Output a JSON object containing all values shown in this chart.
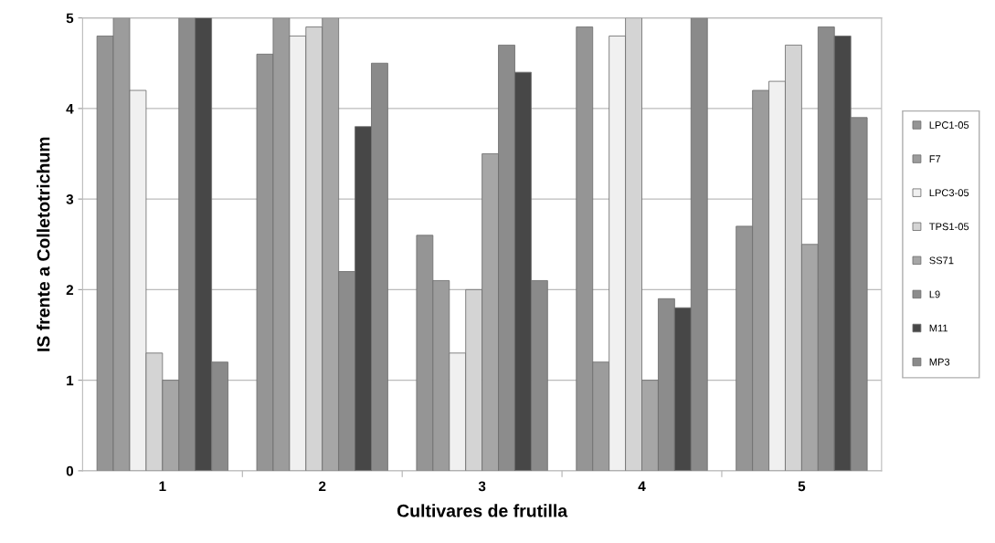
{
  "chart_data": {
    "type": "bar",
    "xlabel": "Cultivares de frutilla",
    "ylabel": "IS frente a Colletotrichum",
    "categories": [
      "1",
      "2",
      "3",
      "4",
      "5"
    ],
    "series": [
      {
        "name": "LPC1-05",
        "color": "#959595",
        "values": [
          4.8,
          4.6,
          2.6,
          4.9,
          2.7
        ]
      },
      {
        "name": "F7",
        "color": "#9c9c9c",
        "values": [
          5,
          5,
          2.1,
          1.2,
          4.2
        ]
      },
      {
        "name": "LPC3-05",
        "color": "#f0f0f0",
        "values": [
          4.2,
          4.8,
          1.3,
          4.8,
          4.3
        ]
      },
      {
        "name": "TPS1-05",
        "color": "#d4d4d4",
        "values": [
          1.3,
          4.9,
          2.0,
          5,
          4.7
        ]
      },
      {
        "name": "SS71",
        "color": "#a6a6a6",
        "values": [
          1.0,
          5,
          3.5,
          1.0,
          2.5
        ]
      },
      {
        "name": "L9",
        "color": "#8c8c8c",
        "values": [
          5,
          2.2,
          4.7,
          1.9,
          4.9
        ]
      },
      {
        "name": "M11",
        "color": "#474747",
        "values": [
          5,
          3.8,
          4.4,
          1.8,
          4.8
        ]
      },
      {
        "name": "MP3",
        "color": "#8a8a8a",
        "values": [
          1.2,
          4.5,
          2.1,
          5,
          3.9
        ]
      }
    ],
    "ylim": [
      0,
      5
    ],
    "yticks": [
      0,
      1,
      2,
      3,
      4,
      5
    ],
    "grid": "y",
    "legend": "right"
  }
}
